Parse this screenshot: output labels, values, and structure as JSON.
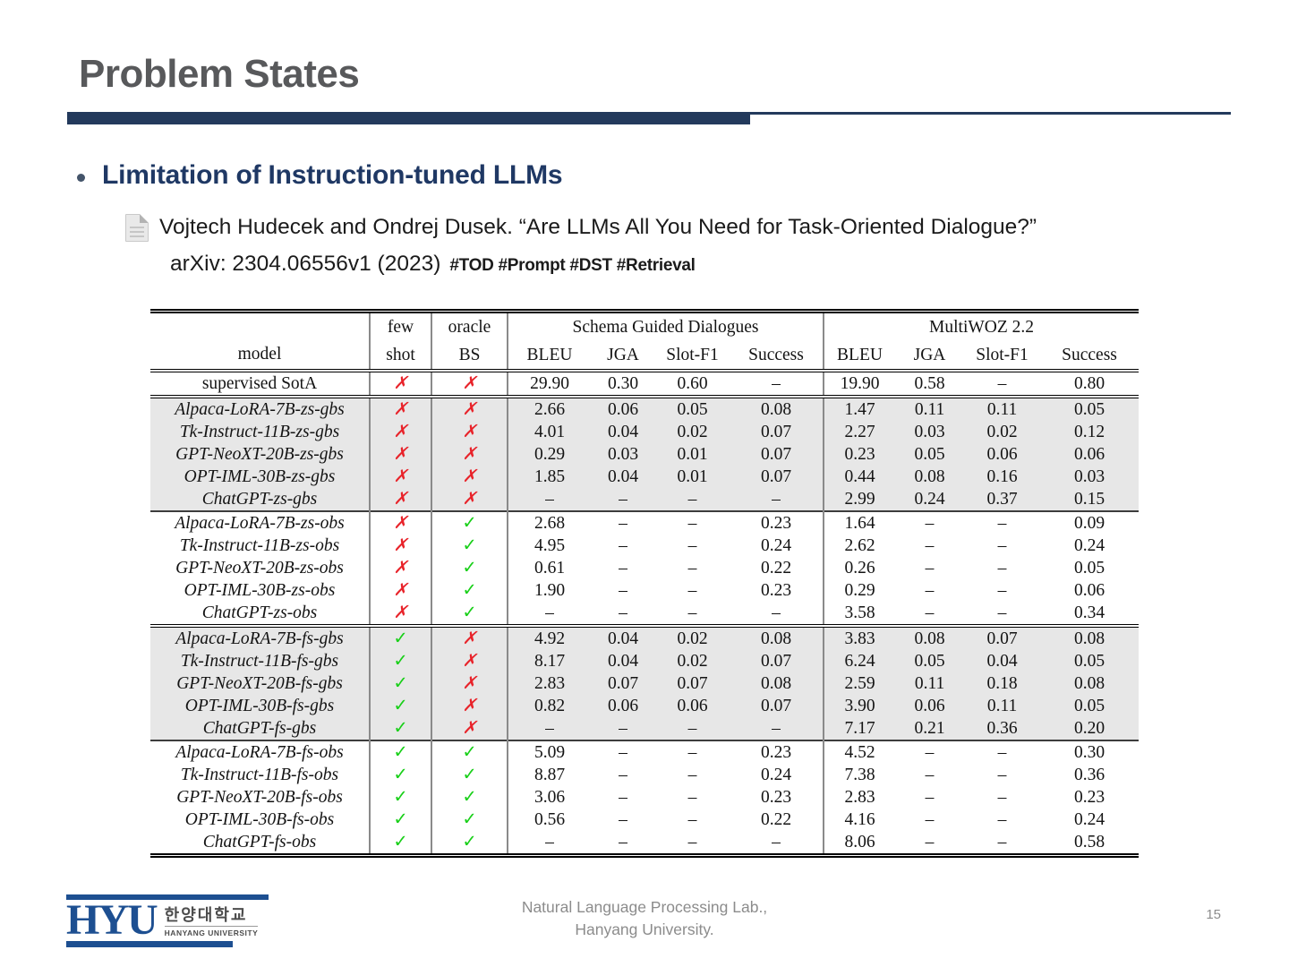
{
  "slide": {
    "title": "Problem States",
    "bullet": "Limitation of Instruction-tuned LLMs",
    "citation": {
      "line1": "Vojtech Hudecek and Ondrej Dusek. “Are LLMs All You Need for Task-Oriented Dialogue?”",
      "line2": "arXiv: 2304.06556v1 (2023)",
      "tags": "#TOD #Prompt #DST #Retrieval"
    },
    "footer": {
      "credit_line1": "Natural Language Processing Lab.,",
      "credit_line2": "Hanyang University.",
      "page_number": "15"
    },
    "logo": {
      "acronym": "HYU",
      "korean_name": "한양대학교",
      "english_name": "HANYANG UNIVERSITY"
    }
  },
  "colors": {
    "title_gray": "#58595b",
    "heading_navy": "#1f3864",
    "accent_navy": "#233a5c",
    "hyu_blue": "#1d4f91",
    "check_green": "#17cf17",
    "cross_red": "#e8232a",
    "row_shade": "#e7e7e7"
  },
  "table": {
    "header": {
      "model": "model",
      "few": "few",
      "shot": "shot",
      "oracle": "oracle",
      "bs": "BS",
      "group1": "Schema Guided Dialogues",
      "group2": "MultiWOZ 2.2",
      "subcols": [
        "BLEU",
        "JGA",
        "Slot-F1",
        "Success"
      ]
    },
    "sections": [
      {
        "name": "supervised",
        "shaded": false,
        "model_italic": false,
        "tall": true,
        "top_rule": "double",
        "rows": [
          [
            "supervised SotA",
            "✗",
            "✗",
            "29.90",
            "0.30",
            "0.60",
            "–",
            "19.90",
            "0.58",
            "–",
            "0.80"
          ]
        ]
      },
      {
        "name": "zero-shot-gbs",
        "shaded": true,
        "model_italic": true,
        "top_rule": "double",
        "rows": [
          [
            "Alpaca-LoRA-7B-zs-gbs",
            "✗",
            "✗",
            "2.66",
            "0.06",
            "0.05",
            "0.08",
            "1.47",
            "0.11",
            "0.11",
            "0.05"
          ],
          [
            "Tk-Instruct-11B-zs-gbs",
            "✗",
            "✗",
            "4.01",
            "0.04",
            "0.02",
            "0.07",
            "2.27",
            "0.03",
            "0.02",
            "0.12"
          ],
          [
            "GPT-NeoXT-20B-zs-gbs",
            "✗",
            "✗",
            "0.29",
            "0.03",
            "0.01",
            "0.07",
            "0.23",
            "0.05",
            "0.06",
            "0.06"
          ],
          [
            "OPT-IML-30B-zs-gbs",
            "✗",
            "✗",
            "1.85",
            "0.04",
            "0.01",
            "0.07",
            "0.44",
            "0.08",
            "0.16",
            "0.03"
          ],
          [
            "ChatGPT-zs-gbs",
            "✗",
            "✗",
            "–",
            "–",
            "–",
            "–",
            "2.99",
            "0.24",
            "0.37",
            "0.15"
          ]
        ]
      },
      {
        "name": "zero-shot-obs",
        "shaded": false,
        "model_italic": true,
        "top_rule": "thin2",
        "rows": [
          [
            "Alpaca-LoRA-7B-zs-obs",
            "✗",
            "✓",
            "2.68",
            "–",
            "–",
            "0.23",
            "1.64",
            "–",
            "–",
            "0.09"
          ],
          [
            "Tk-Instruct-11B-zs-obs",
            "✗",
            "✓",
            "4.95",
            "–",
            "–",
            "0.24",
            "2.62",
            "–",
            "–",
            "0.24"
          ],
          [
            "GPT-NeoXT-20B-zs-obs",
            "✗",
            "✓",
            "0.61",
            "–",
            "–",
            "0.22",
            "0.26",
            "–",
            "–",
            "0.05"
          ],
          [
            "OPT-IML-30B-zs-obs",
            "✗",
            "✓",
            "1.90",
            "–",
            "–",
            "0.23",
            "0.29",
            "–",
            "–",
            "0.06"
          ],
          [
            "ChatGPT-zs-obs",
            "✗",
            "✓",
            "–",
            "–",
            "–",
            "–",
            "3.58",
            "–",
            "–",
            "0.34"
          ]
        ]
      },
      {
        "name": "few-shot-gbs",
        "shaded": true,
        "model_italic": true,
        "top_rule": "double",
        "rows": [
          [
            "Alpaca-LoRA-7B-fs-gbs",
            "✓",
            "✗",
            "4.92",
            "0.04",
            "0.02",
            "0.08",
            "3.83",
            "0.08",
            "0.07",
            "0.08"
          ],
          [
            "Tk-Instruct-11B-fs-gbs",
            "✓",
            "✗",
            "8.17",
            "0.04",
            "0.02",
            "0.07",
            "6.24",
            "0.05",
            "0.04",
            "0.05"
          ],
          [
            "GPT-NeoXT-20B-fs-gbs",
            "✓",
            "✗",
            "2.83",
            "0.07",
            "0.07",
            "0.08",
            "2.59",
            "0.11",
            "0.18",
            "0.08"
          ],
          [
            "OPT-IML-30B-fs-gbs",
            "✓",
            "✗",
            "0.82",
            "0.06",
            "0.06",
            "0.07",
            "3.90",
            "0.06",
            "0.11",
            "0.05"
          ],
          [
            "ChatGPT-fs-gbs",
            "✓",
            "✗",
            "–",
            "–",
            "–",
            "–",
            "7.17",
            "0.21",
            "0.36",
            "0.20"
          ]
        ]
      },
      {
        "name": "few-shot-obs",
        "shaded": false,
        "model_italic": true,
        "top_rule": "thin2",
        "rows": [
          [
            "Alpaca-LoRA-7B-fs-obs",
            "✓",
            "✓",
            "5.09",
            "–",
            "–",
            "0.23",
            "4.52",
            "–",
            "–",
            "0.30"
          ],
          [
            "Tk-Instruct-11B-fs-obs",
            "✓",
            "✓",
            "8.87",
            "–",
            "–",
            "0.24",
            "7.38",
            "–",
            "–",
            "0.36"
          ],
          [
            "GPT-NeoXT-20B-fs-obs",
            "✓",
            "✓",
            "3.06",
            "–",
            "–",
            "0.23",
            "2.83",
            "–",
            "–",
            "0.23"
          ],
          [
            "OPT-IML-30B-fs-obs",
            "✓",
            "✓",
            "0.56",
            "–",
            "–",
            "0.22",
            "4.16",
            "–",
            "–",
            "0.24"
          ],
          [
            "ChatGPT-fs-obs",
            "✓",
            "✓",
            "–",
            "–",
            "–",
            "–",
            "8.06",
            "–",
            "–",
            {
              "text": "0.58",
              "bold": true
            }
          ]
        ]
      }
    ]
  }
}
